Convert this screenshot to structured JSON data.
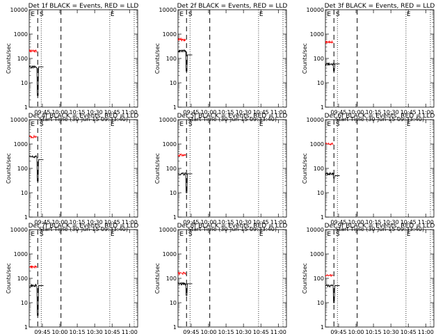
{
  "chart_data": [
    {
      "type": "line",
      "title": "Det 1f  BLACK = Events, RED = LLD",
      "xlabel": "Start Time (30-Jun-15 09:33:40)",
      "ylabel": "Counts/sec",
      "xticks": [
        "09:45",
        "10:00",
        "10:15",
        "10:30",
        "10:45",
        "11:00"
      ],
      "yticks": [
        "1",
        "10",
        "100",
        "1000",
        "10000"
      ],
      "ylim": [
        1,
        10000
      ],
      "yscale": "log",
      "markers": [
        "E",
        "S",
        "E"
      ],
      "events": {
        "base": 45,
        "end": 32,
        "pre": 45,
        "dip": 3
      },
      "lld": {
        "base": 260,
        "end": 170,
        "pre": 200,
        "peak": 20000
      },
      "colors": {
        "events": "#000000",
        "lld": "#ff0000"
      }
    },
    {
      "type": "line",
      "title": "Det 2f  BLACK = Events, RED = LLD",
      "xlabel": "Start Time (30-Jun-15 09:33:40)",
      "ylabel": "Counts/sec",
      "xticks": [
        "09:45",
        "10:00",
        "10:15",
        "10:30",
        "10:45",
        "11:00"
      ],
      "yticks": [
        "1",
        "10",
        "100",
        "1000",
        "10000"
      ],
      "ylim": [
        1,
        10000
      ],
      "yscale": "log",
      "markers": [
        "E",
        "S",
        "E"
      ],
      "events": {
        "base": 140,
        "end": 60,
        "pre": 200,
        "dip": 30
      },
      "lld": {
        "base": 900,
        "end": 330,
        "pre": 600,
        "peak": 20000
      },
      "colors": {
        "events": "#000000",
        "lld": "#ff0000"
      }
    },
    {
      "type": "line",
      "title": "Det 3f  BLACK = Events, RED = LLD",
      "xlabel": "Start Time (30-Jun-15 09:33:40)",
      "ylabel": "Counts/sec",
      "xticks": [
        "09:45",
        "10:00",
        "10:15",
        "10:30",
        "10:45",
        "11:00"
      ],
      "yticks": [
        "1",
        "10",
        "100",
        "1000",
        "10000"
      ],
      "ylim": [
        1,
        10000
      ],
      "yscale": "log",
      "markers": [
        "E",
        "S",
        "E"
      ],
      "events": {
        "base": 60,
        "end": 50,
        "pre": 60,
        "dip": 30
      },
      "lld": {
        "base": 550,
        "end": 430,
        "pre": 480,
        "peak": 20000
      },
      "colors": {
        "events": "#000000",
        "lld": "#ff0000"
      }
    },
    {
      "type": "line",
      "title": "Det 4f  BLACK = Events, RED = LLD",
      "xlabel": "Start Time (30-Jun-15 09:33:40)",
      "ylabel": "Counts/sec",
      "xticks": [
        "09:45",
        "10:00",
        "10:15",
        "10:30",
        "10:45",
        "11:00"
      ],
      "yticks": [
        "1",
        "10",
        "100",
        "1000",
        "10000"
      ],
      "ylim": [
        1,
        10000
      ],
      "yscale": "log",
      "markers": [
        "E",
        "S",
        "E"
      ],
      "events": {
        "base": 230,
        "end": 230,
        "pre": 300,
        "dip": 30
      },
      "lld": {
        "base": 900,
        "end": 800,
        "pre": 2000,
        "peak": 20000
      },
      "colors": {
        "events": "#000000",
        "lld": "#ff0000"
      }
    },
    {
      "type": "line",
      "title": "Det 5f  BLACK = Events, RED = LLD",
      "xlabel": "Start Time (30-Jun-15 09:33:40)",
      "ylabel": "Counts/sec",
      "xticks": [
        "09:45",
        "10:00",
        "10:15",
        "10:30",
        "10:45",
        "11:00"
      ],
      "yticks": [
        "1",
        "10",
        "100",
        "1000",
        "10000"
      ],
      "ylim": [
        1,
        10000
      ],
      "yscale": "log",
      "markers": [
        "E",
        "S",
        "E"
      ],
      "events": {
        "base": 60,
        "end": 50,
        "pre": 60,
        "dip": 10
      },
      "lld": {
        "base": 400,
        "end": 300,
        "pre": 350,
        "peak": 20000
      },
      "colors": {
        "events": "#000000",
        "lld": "#ff0000"
      }
    },
    {
      "type": "line",
      "title": "Det 6f  BLACK = Events, RED = LLD",
      "xlabel": "Start Time (30-Jun-15 09:33:40)",
      "ylabel": "Counts/sec",
      "xticks": [
        "09:45",
        "10:00",
        "10:15",
        "10:30",
        "10:45",
        "11:00"
      ],
      "yticks": [
        "1",
        "10",
        "100",
        "1000",
        "10000"
      ],
      "ylim": [
        1,
        10000
      ],
      "yscale": "log",
      "markers": [
        "E",
        "S",
        "E"
      ],
      "events": {
        "base": 50,
        "end": 45,
        "pre": 60,
        "dip": 40
      },
      "lld": {
        "base": 1100,
        "end": 1000,
        "pre": 1000,
        "peak": 1100
      },
      "colors": {
        "events": "#000000",
        "lld": "#ff0000"
      }
    },
    {
      "type": "line",
      "title": "Det 7f  BLACK = Events, RED = LLD",
      "xlabel": "Start Time (30-Jun-15 09:33:40)",
      "ylabel": "Counts/sec",
      "xticks": [
        "09:45",
        "10:00",
        "10:15",
        "10:30",
        "10:45",
        "11:00"
      ],
      "yticks": [
        "1",
        "10",
        "100",
        "1000",
        "10000"
      ],
      "ylim": [
        1,
        10000
      ],
      "yscale": "log",
      "markers": [
        "E",
        "S",
        "E"
      ],
      "events": {
        "base": 50,
        "end": 45,
        "pre": 50,
        "dip": 3
      },
      "lld": {
        "base": 320,
        "end": 280,
        "pre": 300,
        "peak": 20000
      },
      "colors": {
        "events": "#000000",
        "lld": "#ff0000"
      }
    },
    {
      "type": "line",
      "title": "Det 8f  BLACK = Events, RED = LLD",
      "xlabel": "Start Time (30-Jun-15 09:33:40)",
      "ylabel": "Counts/sec",
      "xticks": [
        "09:45",
        "10:00",
        "10:15",
        "10:30",
        "10:45",
        "11:00"
      ],
      "yticks": [
        "1",
        "10",
        "100",
        "1000",
        "10000"
      ],
      "ylim": [
        1,
        10000
      ],
      "yscale": "log",
      "markers": [
        "E",
        "S",
        "E"
      ],
      "events": {
        "base": 60,
        "end": 50,
        "pre": 60,
        "dip": 20
      },
      "lld": {
        "base": 170,
        "end": 150,
        "pre": 160,
        "peak": 20000
      },
      "colors": {
        "events": "#000000",
        "lld": "#ff0000"
      }
    },
    {
      "type": "line",
      "title": "Det 9f  BLACK = Events, RED = LLD",
      "xlabel": "Start Time (30-Jun-15 09:33:40)",
      "ylabel": "Counts/sec",
      "xticks": [
        "09:45",
        "10:00",
        "10:15",
        "10:30",
        "10:45",
        "11:00"
      ],
      "yticks": [
        "1",
        "10",
        "100",
        "1000",
        "10000"
      ],
      "ylim": [
        1,
        10000
      ],
      "yscale": "log",
      "markers": [
        "E",
        "S",
        "E"
      ],
      "events": {
        "base": 50,
        "end": 45,
        "pre": 50,
        "dip": 10
      },
      "lld": {
        "base": 140,
        "end": 120,
        "pre": 130,
        "peak": 20000
      },
      "colors": {
        "events": "#000000",
        "lld": "#ff0000"
      }
    }
  ]
}
